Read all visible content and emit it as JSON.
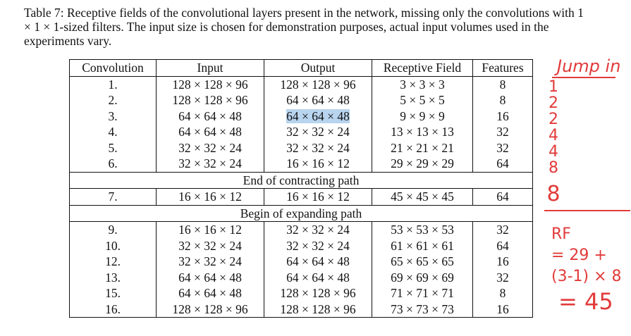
{
  "caption": "Table 7: Receptive fields of the convolutional layers present in the network, missing only the convolutions with 1 × 1 × 1-sized filters. The input size is chosen for demonstration purposes, actual input volumes used in the experiments vary.",
  "headers": [
    "Convolution",
    "Input",
    "Output",
    "Receptive Field",
    "Features"
  ],
  "rows_contract": [
    [
      "1.",
      "128 × 128 × 96",
      "128 × 128 × 96",
      "3 × 3 × 3",
      "8"
    ],
    [
      "2.",
      "128 × 128 × 96",
      "64 × 64 × 48",
      "5 × 5 × 5",
      "8"
    ],
    [
      "3.",
      "64 × 64 × 48",
      "64 × 64 × 48",
      "9 × 9 × 9",
      "16"
    ],
    [
      "4.",
      "64 × 64 × 48",
      "32 × 32 × 24",
      "13 × 13 × 13",
      "32"
    ],
    [
      "5.",
      "32 × 32 × 24",
      "32 × 32 × 24",
      "21 × 21 × 21",
      "32"
    ],
    [
      "6.",
      "32 × 32 × 24",
      "16 × 16 × 12",
      "29 × 29 × 29",
      "64"
    ]
  ],
  "end_contracting": "End of contracting path",
  "row_7": [
    "7.",
    "16 × 16 × 12",
    "16 × 16 × 12",
    "45 × 45 × 45",
    "64"
  ],
  "begin_expanding": "Begin of expanding path",
  "rows_expand": [
    [
      "9.",
      "16 × 16 × 12",
      "32 × 32 × 24",
      "53 × 53 × 53",
      "32"
    ],
    [
      "10.",
      "32 × 32 × 24",
      "32 × 32 × 24",
      "61 × 61 × 61",
      "64"
    ],
    [
      "12.",
      "32 × 32 × 24",
      "64 × 64 × 48",
      "65 × 65 × 65",
      "16"
    ],
    [
      "13.",
      "64 × 64 × 48",
      "64 × 64 × 48",
      "69 × 69 × 69",
      "32"
    ],
    [
      "15.",
      "64 × 64 × 48",
      "128 × 128 × 96",
      "71 × 71 × 71",
      "8"
    ],
    [
      "16.",
      "128 × 128 × 96",
      "128 × 128 × 96",
      "73 × 73 × 73",
      "16"
    ]
  ],
  "annotations": {
    "jump_label": "Jump in",
    "jump_values": [
      "1",
      "2",
      "2",
      "4",
      "4",
      "8",
      "8"
    ],
    "rf_calc": [
      "RF",
      "= 29 +",
      "(3-1) × 8",
      "= 45"
    ]
  }
}
